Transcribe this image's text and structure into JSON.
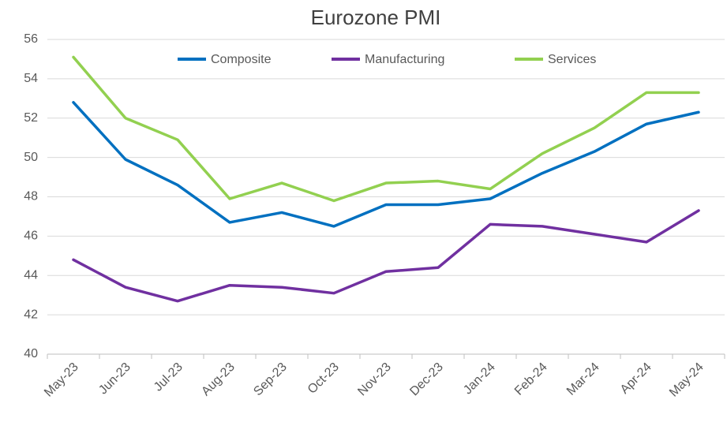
{
  "chart_data": {
    "type": "line",
    "title": "Eurozone PMI",
    "categories": [
      "May-23",
      "Jun-23",
      "Jul-23",
      "Aug-23",
      "Sep-23",
      "Oct-23",
      "Nov-23",
      "Dec-23",
      "Jan-24",
      "Feb-24",
      "Mar-24",
      "Apr-24",
      "May-24"
    ],
    "series": [
      {
        "name": "Composite",
        "color": "#0070c0",
        "values": [
          52.8,
          49.9,
          48.6,
          46.7,
          47.2,
          46.5,
          47.6,
          47.6,
          47.9,
          49.2,
          50.3,
          51.7,
          52.3
        ]
      },
      {
        "name": "Manufacturing",
        "color": "#7030a0",
        "values": [
          44.8,
          43.4,
          42.7,
          43.5,
          43.4,
          43.1,
          44.2,
          44.4,
          46.6,
          46.5,
          46.1,
          45.7,
          47.3
        ]
      },
      {
        "name": "Services",
        "color": "#92d050",
        "values": [
          55.1,
          52.0,
          50.9,
          47.9,
          48.7,
          47.8,
          48.7,
          48.8,
          48.4,
          50.2,
          51.5,
          53.3,
          53.3
        ]
      }
    ],
    "ylim": [
      40,
      56
    ],
    "yticks": [
      40,
      42,
      44,
      46,
      48,
      50,
      52,
      54,
      56
    ],
    "grid": true,
    "legend": "top"
  }
}
